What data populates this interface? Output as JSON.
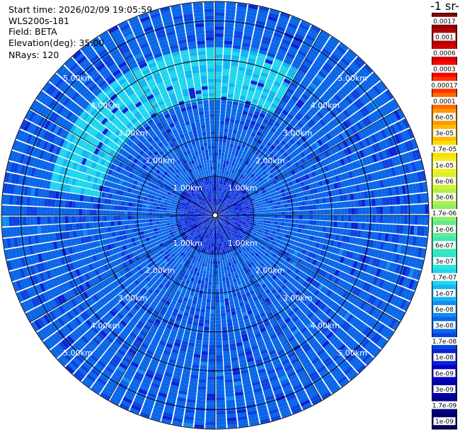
{
  "info": {
    "start_time": "Start time: 2026/02/09 19:05:59",
    "instrument": "WLS200s-181",
    "field": "Field: BETA",
    "elevation": "Elevation(deg): 35.00",
    "nrays": "NRays: 120"
  },
  "colorbar": {
    "title": "-1 sr-",
    "labels": [
      "0.0017",
      "0.001",
      "0.0006",
      "0.0003",
      "0.00017",
      "0.0001",
      "6e-05",
      "3e-05",
      "1.7e-05",
      "1e-05",
      "6e-06",
      "3e-06",
      "1.7e-06",
      "1e-06",
      "6e-07",
      "3e-07",
      "1.7e-07",
      "1e-07",
      "6e-08",
      "3e-08",
      "1.7e-08",
      "1e-08",
      "6e-09",
      "3e-09",
      "1.7e-09",
      "1e-09"
    ],
    "colors": [
      "#8b0000",
      "#b30000",
      "#d40000",
      "#ff0000",
      "#ff3300",
      "#ff6a00",
      "#ff9900",
      "#ffbb00",
      "#ffdd00",
      "#f2ee20",
      "#d6f22e",
      "#b0f04a",
      "#8cee6a",
      "#5fec8e",
      "#3fe6b2",
      "#2be5d5",
      "#1fd6ee",
      "#14b5f2",
      "#0f8ef0",
      "#0a66e8",
      "#0a44e0",
      "#0a22d6",
      "#0000c8",
      "#0000a8",
      "#00008a",
      "#00006a"
    ]
  },
  "chart_data": {
    "type": "heatmap",
    "projection": "polar PPI (plan position indicator)",
    "field": "BETA",
    "elevation_deg": 35.0,
    "n_rays": 120,
    "range_rings_km": [
      1.0,
      2.0,
      3.0,
      4.0,
      5.0
    ],
    "range_ring_labels": [
      "1.00km",
      "2.00km",
      "3.00km",
      "4.00km",
      "5.00km"
    ],
    "max_range_km": 5.5,
    "azimuth_spoke_step_deg": 30,
    "color_scale": "log",
    "value_range": [
      1e-09,
      0.0017
    ],
    "dominant_value": 3e-08,
    "enhanced_arc": {
      "azimuth_deg": [
        280,
        30
      ],
      "range_km": [
        3.0,
        4.3
      ],
      "value": 1.5e-07
    },
    "near_field_value": 1e-08
  }
}
